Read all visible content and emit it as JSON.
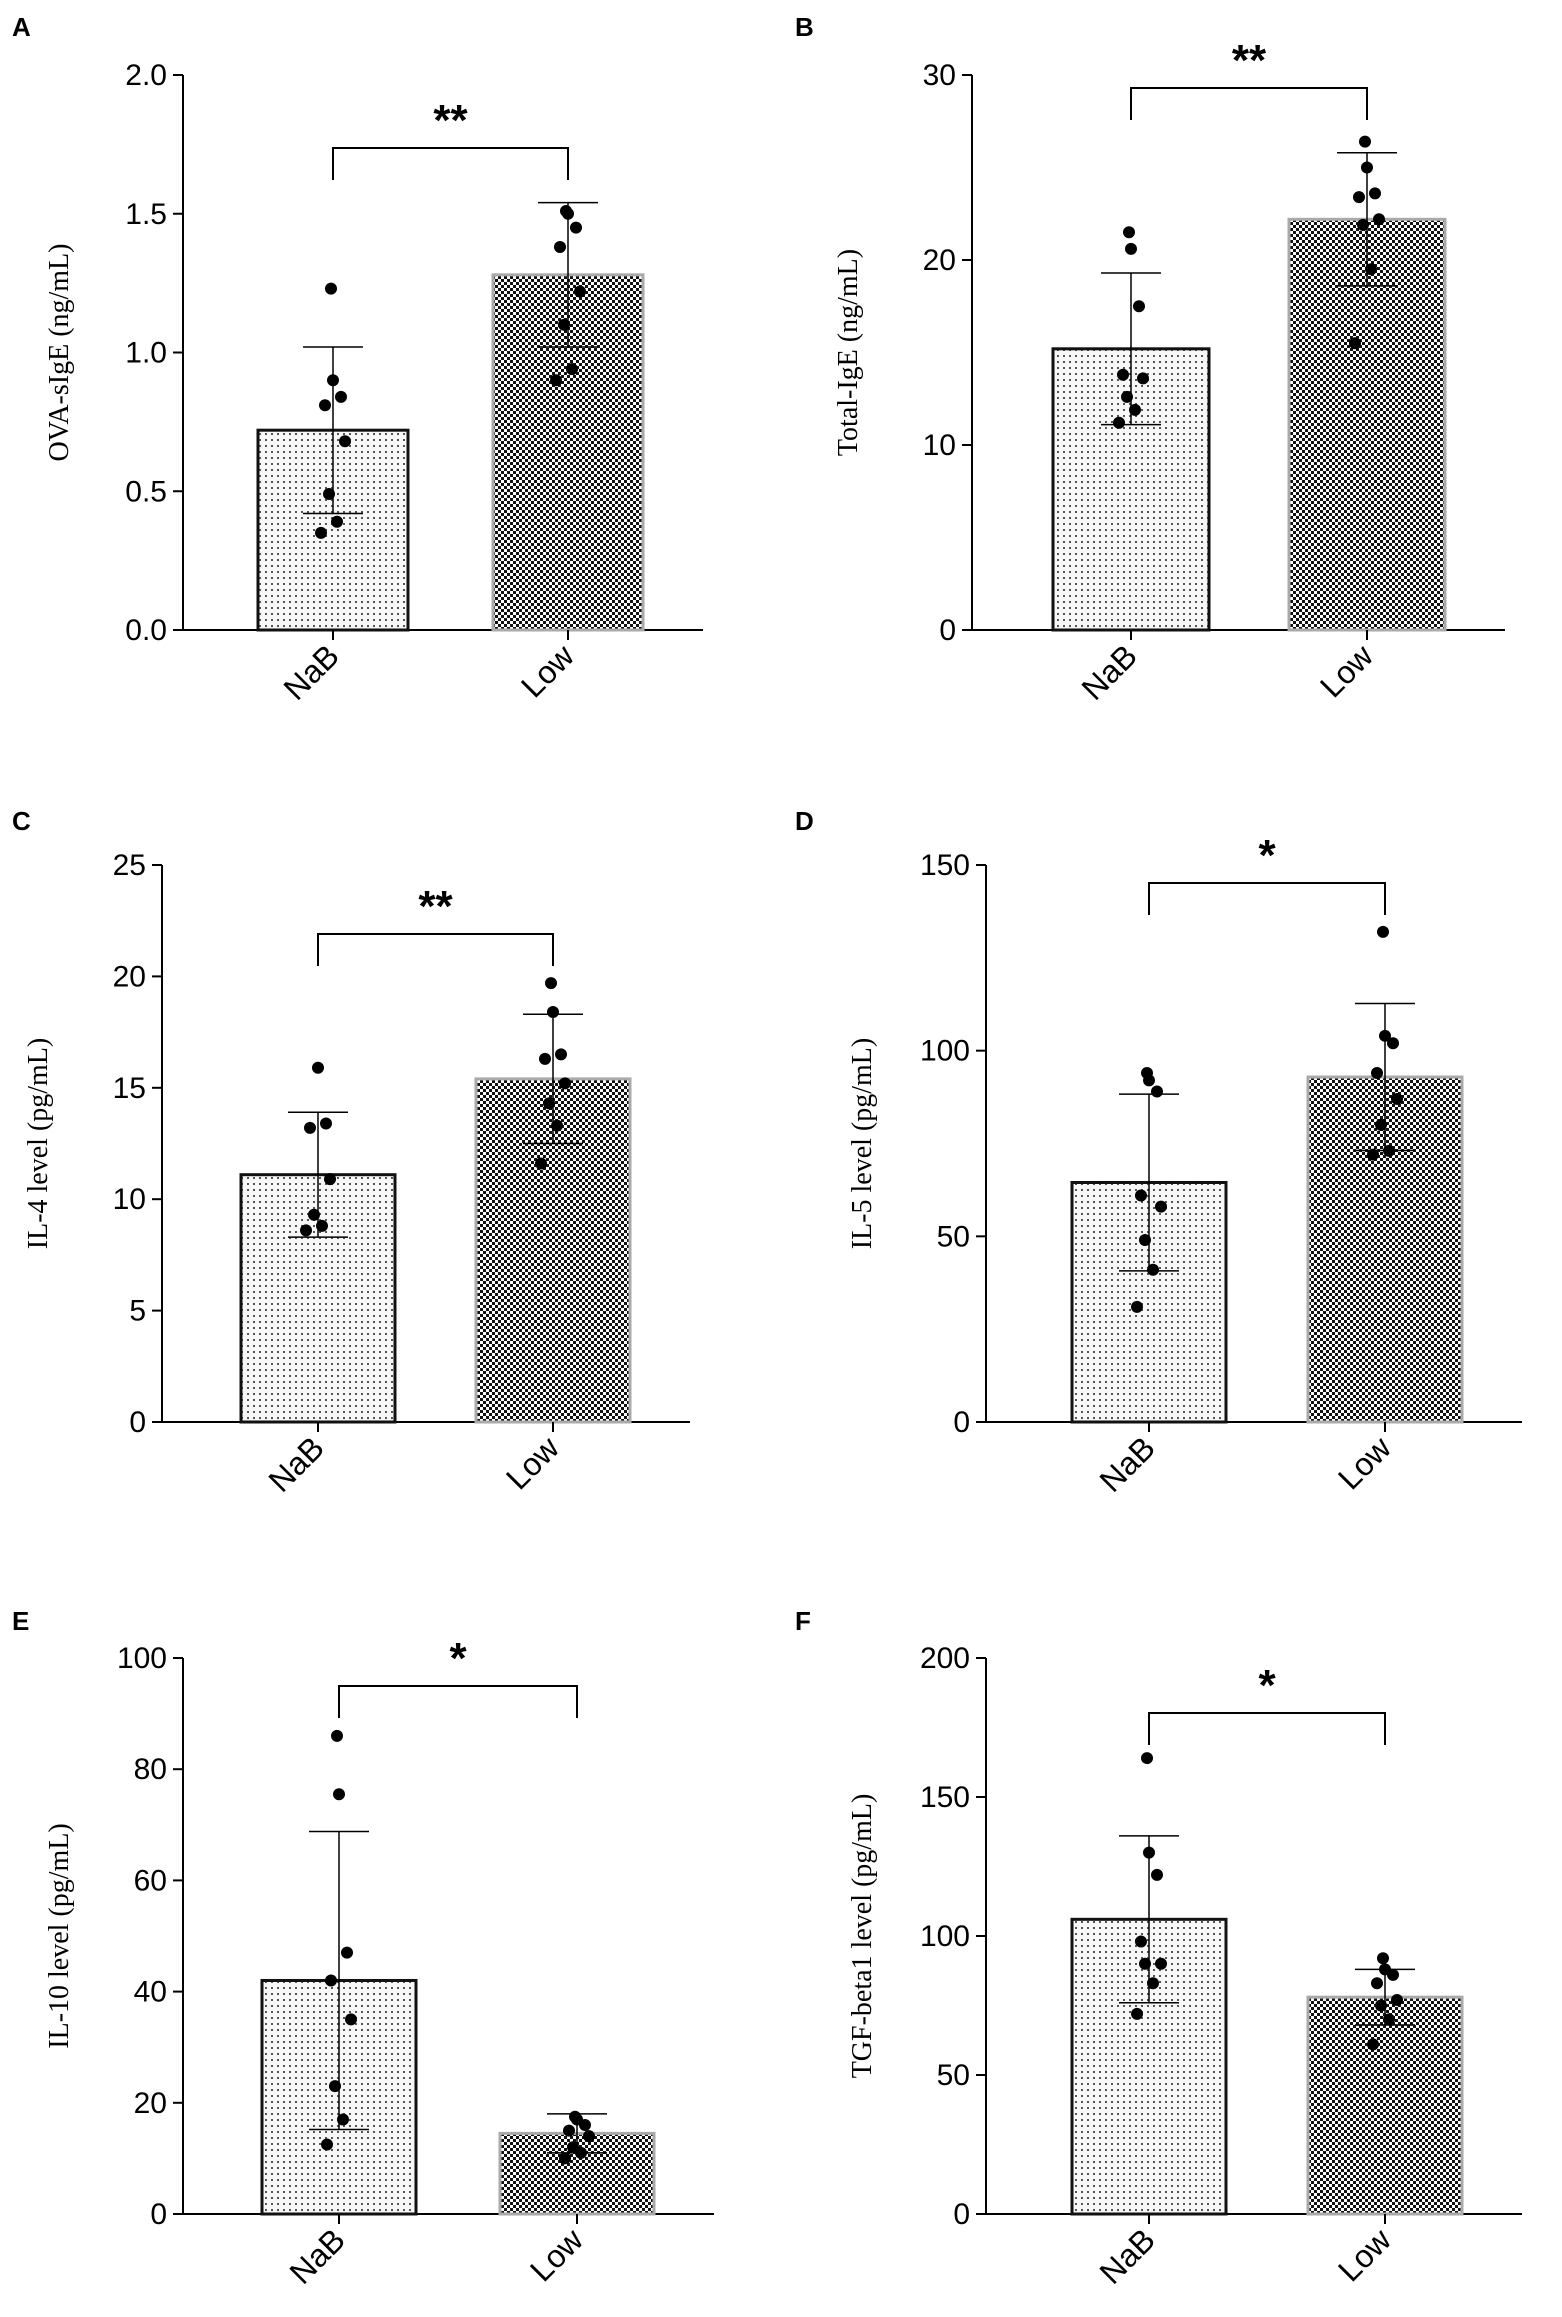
{
  "chart_data": [
    {
      "panel": "A",
      "type": "bar",
      "ylabel": "OVA-sIgE (ng/mL)",
      "ylim": [
        0,
        2.0
      ],
      "yticks": [
        0.0,
        0.5,
        1.0,
        1.5,
        2.0
      ],
      "ytick_labels": [
        "0.0",
        "0.5",
        "1.0",
        "1.5",
        "2.0"
      ],
      "categories": [
        "NaB",
        "Low"
      ],
      "values": [
        0.72,
        1.28
      ],
      "errors": [
        0.3,
        0.26
      ],
      "points": [
        [
          0.35,
          0.39,
          0.49,
          0.68,
          0.81,
          0.84,
          0.9,
          1.23
        ],
        [
          0.9,
          0.94,
          1.1,
          1.22,
          1.38,
          1.45,
          1.5,
          1.51
        ]
      ],
      "significance": "**"
    },
    {
      "panel": "B",
      "type": "bar",
      "ylabel": "Total-IgE (ng/mL)",
      "ylim": [
        0,
        30
      ],
      "yticks": [
        0,
        10,
        20,
        30
      ],
      "ytick_labels": [
        "0",
        "10",
        "20",
        "30"
      ],
      "categories": [
        "NaB",
        "Low"
      ],
      "values": [
        15.2,
        22.2
      ],
      "errors": [
        4.1,
        3.6
      ],
      "points": [
        [
          11.2,
          11.9,
          12.6,
          13.6,
          13.8,
          17.5,
          20.6,
          21.5
        ],
        [
          15.5,
          19.5,
          21.9,
          22.2,
          23.4,
          23.6,
          25.0,
          26.4
        ]
      ],
      "significance": "**"
    },
    {
      "panel": "C",
      "type": "bar",
      "ylabel": "IL-4 level (pg/mL)",
      "ylim": [
        0,
        25
      ],
      "yticks": [
        0,
        5,
        10,
        15,
        20,
        25
      ],
      "ytick_labels": [
        "0",
        "5",
        "10",
        "15",
        "20",
        "25"
      ],
      "categories": [
        "NaB",
        "Low"
      ],
      "values": [
        11.1,
        15.4
      ],
      "errors": [
        2.8,
        2.9
      ],
      "points": [
        [
          8.6,
          8.8,
          9.3,
          10.9,
          13.2,
          13.4,
          15.9
        ],
        [
          11.6,
          13.3,
          14.3,
          15.2,
          16.3,
          16.5,
          18.4,
          19.7
        ]
      ],
      "significance": "**"
    },
    {
      "panel": "D",
      "type": "bar",
      "ylabel": "IL-5 level (pg/mL)",
      "ylim": [
        0,
        150
      ],
      "yticks": [
        0,
        50,
        100,
        150
      ],
      "ytick_labels": [
        "0",
        "50",
        "100",
        "150"
      ],
      "categories": [
        "NaB",
        "Low"
      ],
      "values": [
        64.5,
        92.9
      ],
      "errors": [
        23.8,
        19.8
      ],
      "points": [
        [
          31.0,
          41.0,
          49.0,
          58.0,
          61.0,
          89.0,
          92.0,
          94.0
        ],
        [
          72.0,
          73.0,
          80.0,
          87.0,
          94.0,
          102.0,
          104.0,
          132.0
        ]
      ],
      "significance": "*"
    },
    {
      "panel": "E",
      "type": "bar",
      "ylabel": "IL-10 level (pg/mL)",
      "ylim": [
        0,
        100
      ],
      "yticks": [
        0,
        20,
        40,
        60,
        80,
        100
      ],
      "ytick_labels": [
        "0",
        "20",
        "40",
        "60",
        "80",
        "100"
      ],
      "categories": [
        "NaB",
        "Low"
      ],
      "values": [
        42.0,
        14.5
      ],
      "errors": [
        26.8,
        3.5
      ],
      "points": [
        [
          12.5,
          17.0,
          23.0,
          35.0,
          42.0,
          47.0,
          75.5,
          86.0
        ],
        [
          10.0,
          11.0,
          12.0,
          14.0,
          15.0,
          16.0,
          17.0,
          17.5
        ]
      ],
      "significance": "*"
    },
    {
      "panel": "F",
      "type": "bar",
      "ylabel": "TGF-beta1 level (pg/mL)",
      "ylim": [
        0,
        200
      ],
      "yticks": [
        0,
        50,
        100,
        150,
        200
      ],
      "ytick_labels": [
        "0",
        "50",
        "100",
        "150",
        "200"
      ],
      "categories": [
        "NaB",
        "Low"
      ],
      "values": [
        106.0,
        78.0
      ],
      "errors": [
        30.0,
        10.0
      ],
      "points": [
        [
          72.0,
          83.0,
          90.0,
          90.0,
          98.0,
          122.0,
          130.0,
          164.0
        ],
        [
          61.0,
          70.0,
          75.0,
          77.0,
          83.0,
          86.0,
          88.0,
          92.0
        ]
      ],
      "significance": "*"
    }
  ]
}
